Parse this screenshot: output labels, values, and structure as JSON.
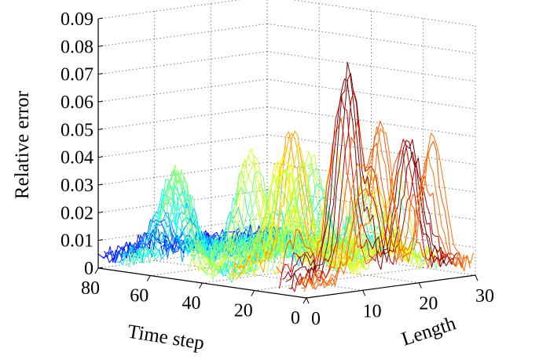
{
  "chart_data": {
    "type": "surface",
    "style": "3d-waterfall-mesh",
    "title": "",
    "zlabel": "Relative error",
    "xlabel": "Time step",
    "ylabel": "Length",
    "zlim": [
      0,
      0.09
    ],
    "z_ticks": [
      0,
      0.01,
      0.02,
      0.03,
      0.04,
      0.05,
      0.06,
      0.07,
      0.08,
      0.09
    ],
    "z_tick_labels": [
      "0",
      "0.01",
      "0.02",
      "0.03",
      "0.04",
      "0.05",
      "0.06",
      "0.07",
      "0.08",
      "0.09"
    ],
    "x_range": [
      0,
      80
    ],
    "x_ticks": [
      0,
      20,
      40,
      60,
      80
    ],
    "x_tick_labels": [
      "0",
      "20",
      "40",
      "60",
      "80"
    ],
    "y_range": [
      0,
      30
    ],
    "y_ticks": [
      0,
      10,
      20,
      30
    ],
    "y_tick_labels": [
      "0",
      "10",
      "20",
      "30"
    ],
    "colormap": "jet",
    "grid": true,
    "peak": {
      "time_step": 8,
      "length": 11,
      "value": 0.073
    },
    "surface_features": [
      {
        "time_step": 8,
        "length": 11,
        "value": 0.073
      },
      {
        "time_step": 2,
        "length": 14,
        "value": 0.053
      },
      {
        "time_step": 27,
        "length": 10,
        "value": 0.048
      },
      {
        "time_step": 0,
        "length": 23,
        "value": 0.048
      },
      {
        "time_step": 9,
        "length": 22,
        "value": 0.045
      },
      {
        "time_step": 18,
        "length": 4,
        "value": 0.042
      },
      {
        "time_step": 54,
        "length": 2,
        "value": 0.034
      },
      {
        "time_step": 43,
        "length": 10,
        "value": 0.038
      },
      {
        "time_step": 38,
        "length": 18,
        "value": 0.036
      },
      {
        "time_step": 68,
        "length": 8,
        "value": 0.028
      },
      {
        "time_step": 28,
        "length": 24,
        "value": 0.03
      }
    ]
  }
}
